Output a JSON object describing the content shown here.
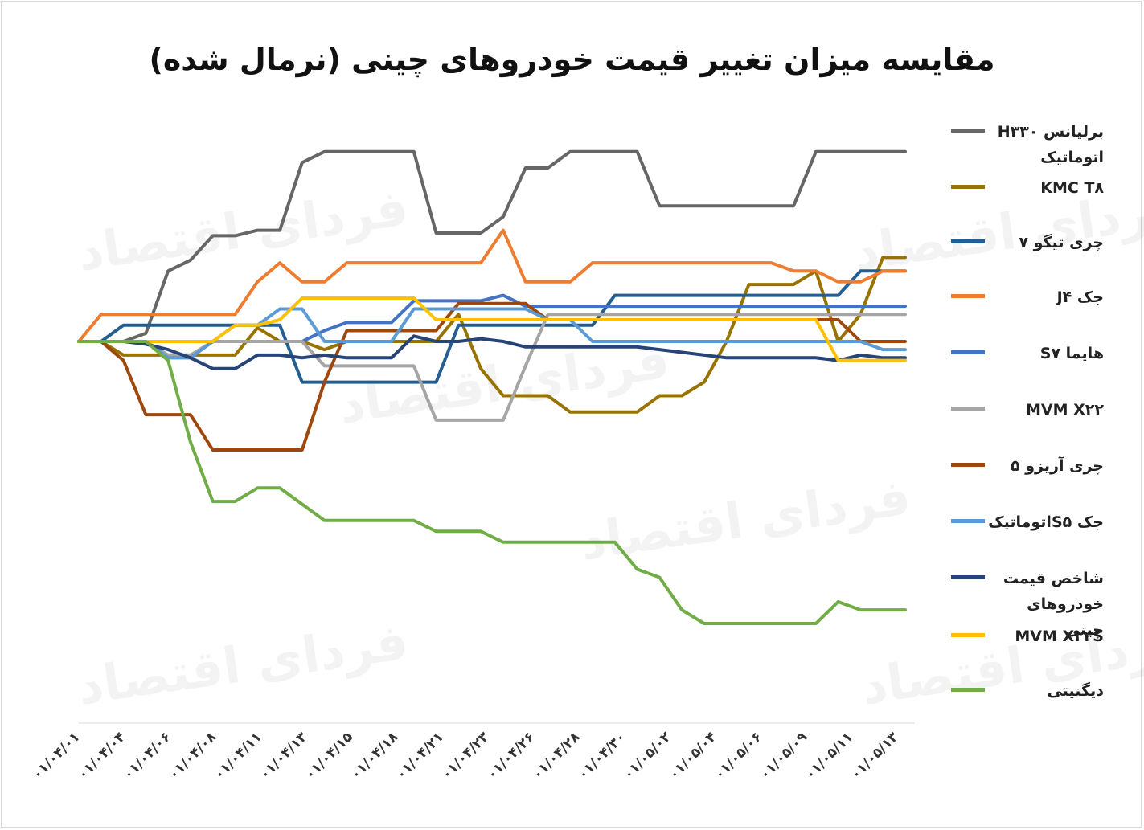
{
  "chart_data": {
    "type": "line",
    "title": "مقایسه میزان تغییر قیمت خودروهای چینی (نرمال شده)",
    "watermark": "فردای اقتصاد",
    "xlabel": "",
    "ylabel": "",
    "ylim": [
      -6,
      3.5
    ],
    "grid": false,
    "legend_position": "right",
    "x_tick_labels": [
      "۰۱/۰۴/۰۱",
      "۰۱/۰۴/۰۴",
      "۰۱/۰۴/۰۶",
      "۰۱/۰۴/۰۸",
      "۰۱/۰۴/۱۱",
      "۰۱/۰۴/۱۳",
      "۰۱/۰۴/۱۵",
      "۰۱/۰۴/۱۸",
      "۰۱/۰۴/۲۱",
      "۰۱/۰۴/۲۳",
      "۰۱/۰۴/۲۶",
      "۰۱/۰۴/۲۸",
      "۰۱/۰۴/۳۰",
      "۰۱/۰۵/۰۲",
      "۰۱/۰۵/۰۴",
      "۰۱/۰۵/۰۶",
      "۰۱/۰۵/۰۹",
      "۰۱/۰۵/۱۱",
      "۰۱/۰۵/۱۳"
    ],
    "series": [
      {
        "name": "برلیانس H۳۳۰ اتوماتیک",
        "color": "#666666",
        "values": [
          0,
          0,
          0,
          0.15,
          1.3,
          1.5,
          1.95,
          1.95,
          2.05,
          2.05,
          3.3,
          3.5,
          3.5,
          3.5,
          3.5,
          3.5,
          2.0,
          2.0,
          2.0,
          2.3,
          3.2,
          3.2,
          3.5,
          3.5,
          3.5,
          3.5,
          2.5,
          2.5,
          2.5,
          2.5,
          2.5,
          2.5,
          2.5,
          3.5,
          3.5,
          3.5,
          3.5,
          3.5
        ]
      },
      {
        "name": "KMC T۸",
        "color": "#997300",
        "values": [
          0,
          0,
          -0.25,
          -0.25,
          -0.25,
          -0.25,
          -0.25,
          -0.25,
          0.25,
          0,
          0,
          -0.15,
          0,
          0,
          0,
          0,
          0,
          0.5,
          -0.5,
          -1.0,
          -1.0,
          -1.0,
          -1.3,
          -1.3,
          -1.3,
          -1.3,
          -1.0,
          -1.0,
          -0.75,
          0,
          1.05,
          1.05,
          1.05,
          1.3,
          0,
          0.5,
          1.55,
          1.55
        ]
      },
      {
        "name": "چری تیگو ۷",
        "color": "#255E91",
        "values": [
          0,
          0,
          0.3,
          0.3,
          0.3,
          0.3,
          0.3,
          0.3,
          0.3,
          0.3,
          -0.75,
          -0.75,
          -0.75,
          -0.75,
          -0.75,
          -0.75,
          -0.75,
          0.3,
          0.3,
          0.3,
          0.3,
          0.3,
          0.3,
          0.3,
          0.85,
          0.85,
          0.85,
          0.85,
          0.85,
          0.85,
          0.85,
          0.85,
          0.85,
          0.85,
          0.85,
          1.3,
          1.3,
          1.3
        ]
      },
      {
        "name": "جک J۴",
        "color": "#ED7D31",
        "values": [
          0,
          0.5,
          0.5,
          0.5,
          0.5,
          0.5,
          0.5,
          0.5,
          1.1,
          1.45,
          1.1,
          1.1,
          1.45,
          1.45,
          1.45,
          1.45,
          1.45,
          1.45,
          1.45,
          2.05,
          1.1,
          1.1,
          1.1,
          1.45,
          1.45,
          1.45,
          1.45,
          1.45,
          1.45,
          1.45,
          1.45,
          1.45,
          1.3,
          1.3,
          1.1,
          1.1,
          1.3,
          1.3
        ]
      },
      {
        "name": "هایما S۷",
        "color": "#4472C4",
        "values": [
          0,
          0,
          0,
          0,
          -0.3,
          -0.3,
          0,
          0,
          0,
          0,
          0,
          0.2,
          0.35,
          0.35,
          0.35,
          0.75,
          0.75,
          0.75,
          0.75,
          0.85,
          0.65,
          0.65,
          0.65,
          0.65,
          0.65,
          0.65,
          0.65,
          0.65,
          0.65,
          0.65,
          0.65,
          0.65,
          0.65,
          0.65,
          0.65,
          0.65,
          0.65,
          0.65
        ]
      },
      {
        "name": "MVM X۲۲",
        "color": "#A5A5A5",
        "values": [
          0,
          0,
          0,
          0,
          -0.25,
          -0.25,
          0,
          0,
          0,
          0,
          0,
          -0.45,
          -0.45,
          -0.45,
          -0.45,
          -0.45,
          -1.45,
          -1.45,
          -1.45,
          -1.45,
          -0.45,
          0.5,
          0.5,
          0.5,
          0.5,
          0.5,
          0.5,
          0.5,
          0.5,
          0.5,
          0.5,
          0.5,
          0.5,
          0.5,
          0.5,
          0.5,
          0.5,
          0.5
        ]
      },
      {
        "name": "چری آریزو ۵",
        "color": "#9E480E",
        "values": [
          0,
          0,
          -0.35,
          -1.35,
          -1.35,
          -1.35,
          -2.0,
          -2.0,
          -2.0,
          -2.0,
          -2.0,
          -0.75,
          0.2,
          0.2,
          0.2,
          0.2,
          0.2,
          0.7,
          0.7,
          0.7,
          0.7,
          0.4,
          0.4,
          0.4,
          0.4,
          0.4,
          0.4,
          0.4,
          0.4,
          0.4,
          0.4,
          0.4,
          0.4,
          0.4,
          0.4,
          0,
          0,
          0
        ]
      },
      {
        "name": "جک S۵اتوماتیک",
        "color": "#5B9BD5",
        "values": [
          0,
          0,
          0,
          0,
          -0.3,
          -0.3,
          0,
          0.3,
          0.3,
          0.6,
          0.6,
          0,
          0,
          0,
          0,
          0.6,
          0.6,
          0.6,
          0.6,
          0.6,
          0.6,
          0.4,
          0.4,
          0,
          0,
          0,
          0,
          0,
          0,
          0,
          0,
          0,
          0,
          0,
          0,
          0,
          -0.15,
          -0.15
        ]
      },
      {
        "name": "شاخص قیمت خودروهای چینی",
        "color": "#264478",
        "values": [
          0,
          0,
          0,
          -0.05,
          -0.15,
          -0.3,
          -0.5,
          -0.5,
          -0.25,
          -0.25,
          -0.3,
          -0.25,
          -0.3,
          -0.3,
          -0.3,
          0.1,
          0,
          0,
          0.05,
          0,
          -0.1,
          -0.1,
          -0.1,
          -0.1,
          -0.1,
          -0.1,
          -0.15,
          -0.2,
          -0.25,
          -0.3,
          -0.3,
          -0.3,
          -0.3,
          -0.3,
          -0.35,
          -0.25,
          -0.3,
          -0.3
        ]
      },
      {
        "name": "MVM X۳۳S",
        "color": "#FFC000",
        "values": [
          0,
          0,
          0,
          0,
          0,
          0,
          0,
          0.3,
          0.3,
          0.4,
          0.8,
          0.8,
          0.8,
          0.8,
          0.8,
          0.8,
          0.4,
          0.4,
          0.4,
          0.4,
          0.4,
          0.4,
          0.4,
          0.4,
          0.4,
          0.4,
          0.4,
          0.4,
          0.4,
          0.4,
          0.4,
          0.4,
          0.4,
          0.4,
          -0.35,
          -0.35,
          -0.35,
          -0.35
        ]
      },
      {
        "name": "دیگنیتی",
        "color": "#70AD47",
        "values": [
          0,
          0,
          0,
          0,
          -0.35,
          -1.85,
          -2.95,
          -2.95,
          -2.7,
          -2.7,
          -3.0,
          -3.3,
          -3.3,
          -3.3,
          -3.3,
          -3.3,
          -3.5,
          -3.5,
          -3.5,
          -3.7,
          -3.7,
          -3.7,
          -3.7,
          -3.7,
          -3.7,
          -4.2,
          -4.35,
          -4.95,
          -5.2,
          -5.2,
          -5.2,
          -5.2,
          -5.2,
          -5.2,
          -4.8,
          -4.95,
          -4.95,
          -4.95
        ]
      }
    ]
  }
}
